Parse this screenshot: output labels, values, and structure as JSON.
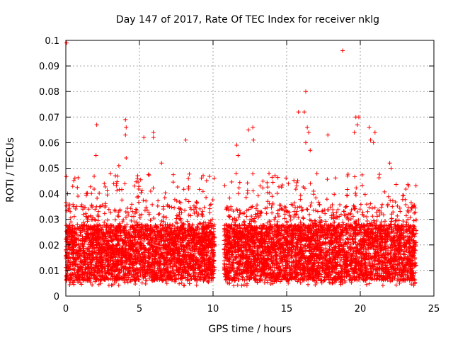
{
  "chart_data": {
    "type": "scatter",
    "title": "Day 147 of 2017, Rate Of TEC Index for receiver nklg",
    "xlabel": "GPS time / hours",
    "ylabel": "ROTI / TECUs",
    "xlim": [
      0,
      25
    ],
    "ylim": [
      0,
      0.1
    ],
    "xticks": [
      0,
      5,
      10,
      15,
      20,
      25
    ],
    "xtick_labels": [
      "0",
      "5",
      "10",
      "15",
      "20",
      "25"
    ],
    "yticks": [
      0,
      0.01,
      0.02,
      0.03,
      0.04,
      0.05,
      0.06,
      0.07,
      0.08,
      0.09,
      0.1
    ],
    "ytick_labels": [
      "0",
      "0.01",
      "0.02",
      "0.03",
      "0.04",
      "0.05",
      "0.06",
      "0.07",
      "0.08",
      "0.09",
      "0.1"
    ],
    "grid": true,
    "marker": "plus",
    "color": "#ff0000",
    "series": [
      {
        "name": "ROTI",
        "segments": [
          {
            "x_start": 0.0,
            "x_end": 10.1
          },
          {
            "x_start": 10.75,
            "x_end": 23.8
          }
        ],
        "typical_range": [
          0.005,
          0.03
        ],
        "outliers": [
          {
            "x": 0.05,
            "y": 0.099
          },
          {
            "x": 2.1,
            "y": 0.067
          },
          {
            "x": 2.05,
            "y": 0.055
          },
          {
            "x": 3.6,
            "y": 0.051
          },
          {
            "x": 4.05,
            "y": 0.069
          },
          {
            "x": 4.1,
            "y": 0.066
          },
          {
            "x": 4.05,
            "y": 0.063
          },
          {
            "x": 4.1,
            "y": 0.054
          },
          {
            "x": 5.3,
            "y": 0.062
          },
          {
            "x": 5.95,
            "y": 0.062
          },
          {
            "x": 5.95,
            "y": 0.064
          },
          {
            "x": 6.5,
            "y": 0.052
          },
          {
            "x": 8.15,
            "y": 0.061
          },
          {
            "x": 11.6,
            "y": 0.059
          },
          {
            "x": 11.7,
            "y": 0.055
          },
          {
            "x": 12.4,
            "y": 0.065
          },
          {
            "x": 12.7,
            "y": 0.066
          },
          {
            "x": 12.75,
            "y": 0.061
          },
          {
            "x": 13.8,
            "y": 0.048
          },
          {
            "x": 15.8,
            "y": 0.072
          },
          {
            "x": 16.3,
            "y": 0.08
          },
          {
            "x": 16.2,
            "y": 0.072
          },
          {
            "x": 16.4,
            "y": 0.066
          },
          {
            "x": 16.5,
            "y": 0.064
          },
          {
            "x": 16.3,
            "y": 0.06
          },
          {
            "x": 16.6,
            "y": 0.057
          },
          {
            "x": 17.8,
            "y": 0.063
          },
          {
            "x": 18.8,
            "y": 0.096
          },
          {
            "x": 19.7,
            "y": 0.07
          },
          {
            "x": 19.9,
            "y": 0.07
          },
          {
            "x": 19.8,
            "y": 0.067
          },
          {
            "x": 19.6,
            "y": 0.064
          },
          {
            "x": 20.6,
            "y": 0.066
          },
          {
            "x": 20.7,
            "y": 0.061
          },
          {
            "x": 21.0,
            "y": 0.064
          },
          {
            "x": 20.9,
            "y": 0.06
          },
          {
            "x": 22.1,
            "y": 0.05
          },
          {
            "x": 22.0,
            "y": 0.052
          }
        ]
      }
    ]
  }
}
